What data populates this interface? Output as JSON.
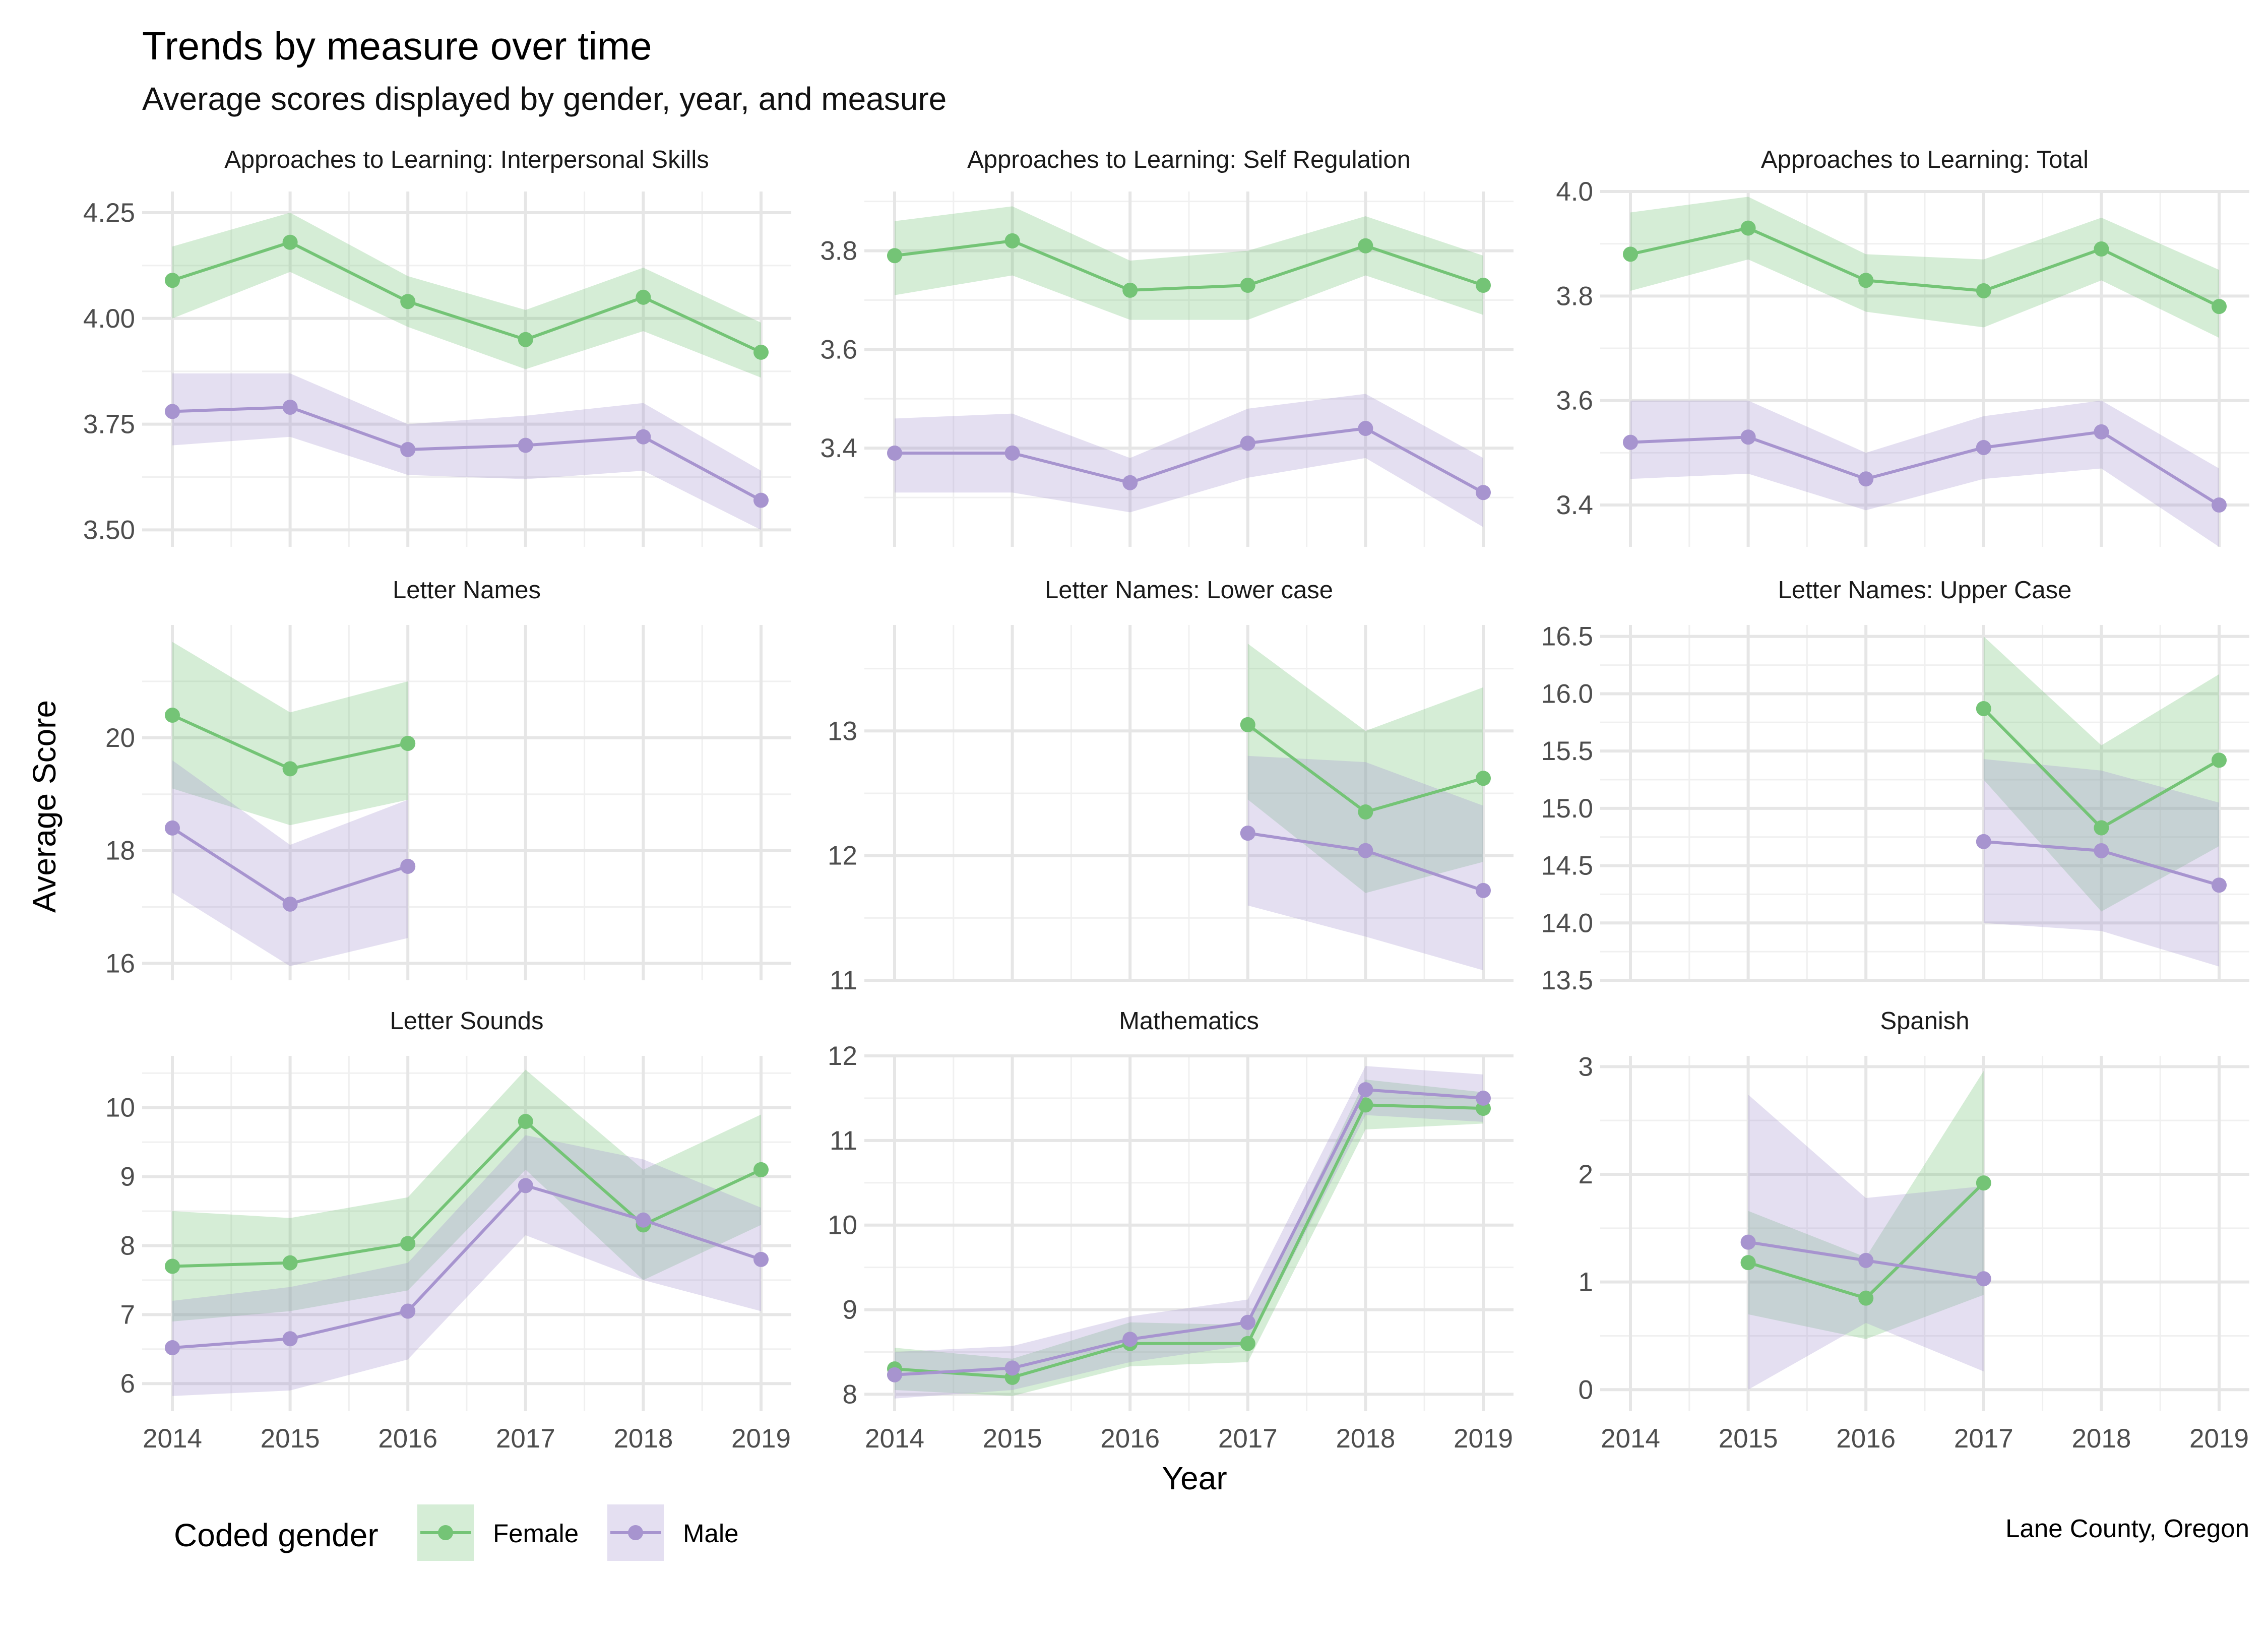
{
  "title": "Trends by measure over time",
  "subtitle": "Average scores displayed by gender, year, and measure",
  "caption": "Lane County, Oregon",
  "colors": {
    "Female": "#74c476",
    "Male": "#a794cf"
  },
  "chart_data": {
    "type": "line",
    "xlabel": "Year",
    "ylabel": "Average Score",
    "x_ticks": [
      2014,
      2015,
      2016,
      2017,
      2018,
      2019
    ],
    "legend": {
      "title": "Coded gender",
      "placement": "bottom-left",
      "entries": [
        "Female",
        "Male"
      ]
    },
    "panels": [
      {
        "title": "Approaches to Learning: Interpersonal Skills",
        "ylim": [
          3.46,
          4.3
        ],
        "yticks": [
          3.5,
          3.75,
          4.0,
          4.25
        ],
        "ytick_labels": [
          "3.50",
          "3.75",
          "4.00",
          "4.25"
        ],
        "series": [
          {
            "name": "Female",
            "x": [
              2014,
              2015,
              2016,
              2017,
              2018,
              2019
            ],
            "y": [
              4.09,
              4.18,
              4.04,
              3.95,
              4.05,
              3.92
            ],
            "lower": [
              4.0,
              4.11,
              3.98,
              3.88,
              3.97,
              3.86
            ],
            "upper": [
              4.17,
              4.25,
              4.1,
              4.02,
              4.12,
              3.99
            ]
          },
          {
            "name": "Male",
            "x": [
              2014,
              2015,
              2016,
              2017,
              2018,
              2019
            ],
            "y": [
              3.78,
              3.79,
              3.69,
              3.7,
              3.72,
              3.57
            ],
            "lower": [
              3.7,
              3.72,
              3.63,
              3.62,
              3.64,
              3.5
            ],
            "upper": [
              3.87,
              3.87,
              3.75,
              3.77,
              3.8,
              3.64
            ]
          }
        ]
      },
      {
        "title": "Approaches to Learning: Self Regulation",
        "ylim": [
          3.2,
          3.92
        ],
        "yticks": [
          3.4,
          3.6,
          3.8
        ],
        "ytick_labels": [
          "3.4",
          "3.6",
          "3.8"
        ],
        "series": [
          {
            "name": "Female",
            "x": [
              2014,
              2015,
              2016,
              2017,
              2018,
              2019
            ],
            "y": [
              3.79,
              3.82,
              3.72,
              3.73,
              3.81,
              3.73
            ],
            "lower": [
              3.71,
              3.75,
              3.66,
              3.66,
              3.75,
              3.67
            ],
            "upper": [
              3.86,
              3.89,
              3.78,
              3.8,
              3.87,
              3.79
            ]
          },
          {
            "name": "Male",
            "x": [
              2014,
              2015,
              2016,
              2017,
              2018,
              2019
            ],
            "y": [
              3.39,
              3.39,
              3.33,
              3.41,
              3.44,
              3.31
            ],
            "lower": [
              3.31,
              3.31,
              3.27,
              3.34,
              3.38,
              3.24
            ],
            "upper": [
              3.46,
              3.47,
              3.38,
              3.48,
              3.51,
              3.38
            ]
          }
        ]
      },
      {
        "title": "Approaches to Learning: Total",
        "ylim": [
          3.32,
          4.0
        ],
        "yticks": [
          3.4,
          3.6,
          3.8,
          4.0
        ],
        "ytick_labels": [
          "3.4",
          "3.6",
          "3.8",
          "4.0"
        ],
        "series": [
          {
            "name": "Female",
            "x": [
              2014,
              2015,
              2016,
              2017,
              2018,
              2019
            ],
            "y": [
              3.88,
              3.93,
              3.83,
              3.81,
              3.89,
              3.78
            ],
            "lower": [
              3.81,
              3.87,
              3.77,
              3.74,
              3.83,
              3.72
            ],
            "upper": [
              3.96,
              3.99,
              3.88,
              3.87,
              3.95,
              3.85
            ]
          },
          {
            "name": "Male",
            "x": [
              2014,
              2015,
              2016,
              2017,
              2018,
              2019
            ],
            "y": [
              3.52,
              3.53,
              3.45,
              3.51,
              3.54,
              3.4
            ],
            "lower": [
              3.45,
              3.46,
              3.39,
              3.45,
              3.47,
              3.32
            ],
            "upper": [
              3.6,
              3.6,
              3.5,
              3.57,
              3.6,
              3.47
            ]
          }
        ]
      },
      {
        "title": "Letter Names",
        "ylim": [
          15.7,
          22.0
        ],
        "yticks": [
          16,
          18,
          20
        ],
        "ytick_labels": [
          "16",
          "18",
          "20"
        ],
        "series": [
          {
            "name": "Female",
            "x": [
              2014,
              2015,
              2016
            ],
            "y": [
              20.4,
              19.45,
              19.9
            ],
            "lower": [
              19.1,
              18.45,
              18.9
            ],
            "upper": [
              21.7,
              20.45,
              21.0
            ]
          },
          {
            "name": "Male",
            "x": [
              2014,
              2015,
              2016
            ],
            "y": [
              18.4,
              17.05,
              17.72
            ],
            "lower": [
              17.25,
              15.95,
              16.45
            ],
            "upper": [
              19.6,
              18.1,
              18.9
            ]
          }
        ]
      },
      {
        "title": "Letter Names: Lower case",
        "ylim": [
          11.0,
          13.85
        ],
        "yticks": [
          11,
          12,
          13
        ],
        "ytick_labels": [
          "11",
          "12",
          "13"
        ],
        "series": [
          {
            "name": "Female",
            "x": [
              2017,
              2018,
              2019
            ],
            "y": [
              13.05,
              12.35,
              12.62
            ],
            "lower": [
              12.45,
              11.7,
              11.95
            ],
            "upper": [
              13.7,
              13.0,
              13.35
            ]
          },
          {
            "name": "Male",
            "x": [
              2017,
              2018,
              2019
            ],
            "y": [
              12.18,
              12.04,
              11.72
            ],
            "lower": [
              11.6,
              11.35,
              11.08
            ],
            "upper": [
              12.8,
              12.75,
              12.4
            ]
          }
        ]
      },
      {
        "title": "Letter Names: Upper Case",
        "ylim": [
          13.5,
          16.6
        ],
        "yticks": [
          13.5,
          14.0,
          14.5,
          15.0,
          15.5,
          16.0,
          16.5
        ],
        "ytick_labels": [
          "13.5",
          "14.0",
          "14.5",
          "15.0",
          "15.5",
          "16.0",
          "16.5"
        ],
        "series": [
          {
            "name": "Female",
            "x": [
              2017,
              2018,
              2019
            ],
            "y": [
              15.87,
              14.83,
              15.42
            ],
            "lower": [
              15.25,
              14.1,
              14.67
            ],
            "upper": [
              16.5,
              15.55,
              16.17
            ]
          },
          {
            "name": "Male",
            "x": [
              2017,
              2018,
              2019
            ],
            "y": [
              14.71,
              14.63,
              14.33
            ],
            "lower": [
              14.0,
              13.93,
              13.62
            ],
            "upper": [
              15.43,
              15.33,
              15.05
            ]
          }
        ]
      },
      {
        "title": "Letter Sounds",
        "ylim": [
          5.6,
          10.75
        ],
        "yticks": [
          6,
          7,
          8,
          9,
          10
        ],
        "ytick_labels": [
          "6",
          "7",
          "8",
          "9",
          "10"
        ],
        "series": [
          {
            "name": "Female",
            "x": [
              2014,
              2015,
              2016,
              2017,
              2018,
              2019
            ],
            "y": [
              7.7,
              7.75,
              8.03,
              9.8,
              8.3,
              9.1
            ],
            "lower": [
              6.9,
              7.05,
              7.35,
              9.1,
              7.5,
              8.3
            ],
            "upper": [
              8.5,
              8.4,
              8.7,
              10.55,
              9.1,
              9.9
            ]
          },
          {
            "name": "Male",
            "x": [
              2014,
              2015,
              2016,
              2017,
              2018,
              2019
            ],
            "y": [
              6.52,
              6.65,
              7.05,
              8.87,
              8.37,
              7.8
            ],
            "lower": [
              5.82,
              5.9,
              6.35,
              8.15,
              7.5,
              7.05
            ],
            "upper": [
              7.2,
              7.4,
              7.75,
              9.6,
              9.25,
              8.55
            ]
          }
        ]
      },
      {
        "title": "Mathematics",
        "ylim": [
          7.8,
          12.0
        ],
        "yticks": [
          8,
          9,
          10,
          11,
          12
        ],
        "ytick_labels": [
          "8",
          "9",
          "10",
          "11",
          "12"
        ],
        "series": [
          {
            "name": "Female",
            "x": [
              2014,
              2015,
              2016,
              2017,
              2018,
              2019
            ],
            "y": [
              8.3,
              8.2,
              8.6,
              8.6,
              11.42,
              11.38
            ],
            "lower": [
              8.05,
              7.98,
              8.33,
              8.38,
              11.13,
              11.2
            ],
            "upper": [
              8.55,
              8.42,
              8.85,
              8.82,
              11.72,
              11.57
            ]
          },
          {
            "name": "Male",
            "x": [
              2014,
              2015,
              2016,
              2017,
              2018,
              2019
            ],
            "y": [
              8.23,
              8.31,
              8.65,
              8.85,
              11.6,
              11.5
            ],
            "lower": [
              7.95,
              8.05,
              8.38,
              8.58,
              11.3,
              11.22
            ],
            "upper": [
              8.5,
              8.57,
              8.92,
              9.12,
              11.88,
              11.78
            ]
          }
        ]
      },
      {
        "title": "Spanish",
        "ylim": [
          -0.2,
          3.1
        ],
        "yticks": [
          0,
          1,
          2,
          3
        ],
        "ytick_labels": [
          "0",
          "1",
          "2",
          "3"
        ],
        "series": [
          {
            "name": "Female",
            "x": [
              2015,
              2016,
              2017
            ],
            "y": [
              1.18,
              0.85,
              1.92
            ],
            "lower": [
              0.7,
              0.47,
              0.88
            ],
            "upper": [
              1.66,
              1.23,
              2.96
            ]
          },
          {
            "name": "Male",
            "x": [
              2015,
              2016,
              2017
            ],
            "y": [
              1.37,
              1.2,
              1.03
            ],
            "lower": [
              0.0,
              0.62,
              0.17
            ],
            "upper": [
              2.74,
              1.78,
              1.89
            ]
          }
        ]
      }
    ]
  }
}
